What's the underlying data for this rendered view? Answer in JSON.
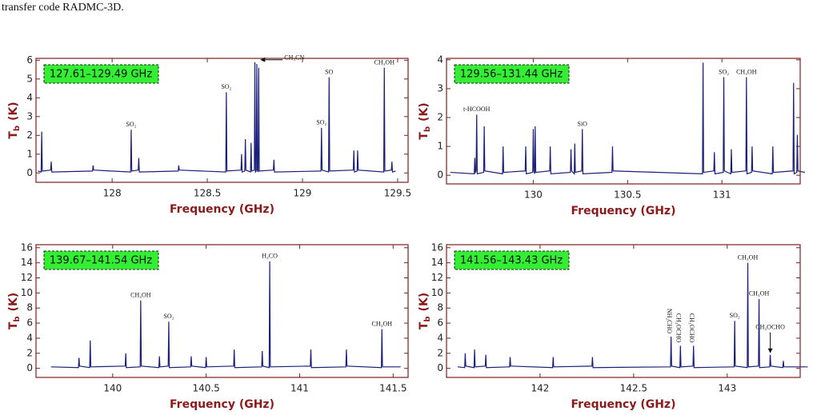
{
  "caption": "transfer code RADMC-3D.",
  "chart_data": [
    {
      "type": "line",
      "range_label": "127.61–129.49 GHz",
      "xlabel": "Frequency (GHz)",
      "ylabel": "T",
      "ylabel_subscript": "b",
      "ylabel_unit": "(K)",
      "color": "#1a1f7a",
      "box_color": "#33ee33",
      "xlim": [
        127.6,
        129.555
      ],
      "ylim": [
        -0.5,
        6.1
      ],
      "xticks": [
        128,
        128.5,
        129,
        129.5
      ],
      "yticks": [
        0,
        1,
        2,
        3,
        4,
        5,
        6
      ],
      "x": [
        127.61,
        127.627,
        127.63,
        127.633,
        127.677,
        127.68,
        127.683,
        127.897,
        127.9,
        127.903,
        128.097,
        128.1,
        128.103,
        128.137,
        128.14,
        128.143,
        128.347,
        128.35,
        128.353,
        128.597,
        128.6,
        128.603,
        128.677,
        128.68,
        128.683,
        128.697,
        128.7,
        128.703,
        128.727,
        128.73,
        128.733,
        128.747,
        128.75,
        128.753,
        128.757,
        128.76,
        128.763,
        128.767,
        128.77,
        128.773,
        128.847,
        128.85,
        128.853,
        129.097,
        129.1,
        129.103,
        129.137,
        129.14,
        129.143,
        129.267,
        129.27,
        129.273,
        129.287,
        129.29,
        129.293,
        129.427,
        129.43,
        129.433,
        129.467,
        129.47,
        129.473,
        129.49
      ],
      "values": [
        0.1,
        0.05,
        2.2,
        0.1,
        0.15,
        0.6,
        0.05,
        0.1,
        0.4,
        0.15,
        0.05,
        2.3,
        0.1,
        0.15,
        0.8,
        0.05,
        0.1,
        0.4,
        0.15,
        0.05,
        4.3,
        0.1,
        0.15,
        1.0,
        0.05,
        0.1,
        1.8,
        0.15,
        0.05,
        1.6,
        0.1,
        0.15,
        5.9,
        0.05,
        0.1,
        5.8,
        0.15,
        0.05,
        5.6,
        0.1,
        0.15,
        0.7,
        0.05,
        0.1,
        2.4,
        0.15,
        0.05,
        5.1,
        0.1,
        0.15,
        1.2,
        0.05,
        0.1,
        1.2,
        0.15,
        0.05,
        5.6,
        0.1,
        0.15,
        0.6,
        0.05,
        0.1
      ],
      "annotations": [
        {
          "text": "SO₂",
          "x": 128.1,
          "y": 2.3
        },
        {
          "text": "SO₂",
          "x": 128.6,
          "y": 4.3
        },
        {
          "text": "CH₃CN",
          "x": 128.77,
          "y": 5.6,
          "arrow": "left"
        },
        {
          "text": "SO₂",
          "x": 129.1,
          "y": 2.4
        },
        {
          "text": "SO",
          "x": 129.14,
          "y": 5.1
        },
        {
          "text": "CH₃OH",
          "x": 129.43,
          "y": 5.6
        }
      ]
    },
    {
      "type": "line",
      "range_label": "129.56–131.44 GHz",
      "xlabel": "Frequency (GHz)",
      "ylabel": "T",
      "ylabel_subscript": "b",
      "ylabel_unit": "(K)",
      "color": "#1a1f7a",
      "box_color": "#33ee33",
      "xlim": [
        129.54,
        131.415
      ],
      "ylim": [
        -0.3,
        4.05
      ],
      "xticks": [
        130,
        130.5,
        131
      ],
      "yticks": [
        0,
        1,
        2,
        3,
        4
      ],
      "x": [
        129.56,
        129.687,
        129.69,
        129.693,
        129.697,
        129.7,
        129.703,
        129.737,
        129.74,
        129.743,
        129.837,
        129.84,
        129.843,
        129.957,
        129.96,
        129.963,
        129.997,
        130.0,
        130.003,
        130.007,
        130.01,
        130.013,
        130.087,
        130.09,
        130.093,
        130.197,
        130.2,
        130.203,
        130.217,
        130.22,
        130.223,
        130.257,
        130.26,
        130.263,
        130.417,
        130.42,
        130.423,
        130.897,
        130.9,
        130.903,
        130.957,
        130.96,
        130.963,
        131.007,
        131.01,
        131.013,
        131.047,
        131.05,
        131.053,
        131.127,
        131.13,
        131.133,
        131.157,
        131.16,
        131.163,
        131.267,
        131.27,
        131.273,
        131.377,
        131.38,
        131.383,
        131.397,
        131.4,
        131.403,
        131.44
      ],
      "values": [
        0.1,
        0.05,
        0.6,
        0.1,
        0.15,
        2.1,
        0.05,
        0.1,
        1.7,
        0.15,
        0.05,
        1.0,
        0.1,
        0.15,
        1.0,
        0.05,
        0.1,
        1.6,
        0.15,
        0.05,
        1.7,
        0.1,
        0.15,
        1.0,
        0.05,
        0.1,
        0.9,
        0.15,
        0.05,
        1.1,
        0.1,
        0.15,
        1.6,
        0.05,
        0.1,
        1.0,
        0.15,
        0.05,
        3.9,
        0.1,
        0.15,
        0.8,
        0.05,
        0.1,
        3.4,
        0.15,
        0.05,
        0.9,
        0.1,
        0.15,
        3.4,
        0.05,
        0.1,
        1.0,
        0.15,
        0.05,
        1.0,
        0.1,
        0.15,
        3.2,
        0.05,
        0.1,
        1.4,
        0.15,
        0.1
      ],
      "annotations": [
        {
          "text": "t-HCOOH",
          "x": 129.7,
          "y": 2.1
        },
        {
          "text": "SiO",
          "x": 130.26,
          "y": 1.6
        },
        {
          "text": "SO₂",
          "x": 131.01,
          "y": 3.4
        },
        {
          "text": "CH₃OH",
          "x": 131.13,
          "y": 3.4
        }
      ]
    },
    {
      "type": "line",
      "range_label": "139.67–141.54 GHz",
      "xlabel": "Frequency (GHz)",
      "ylabel": "T",
      "ylabel_subscript": "b",
      "ylabel_unit": "(K)",
      "color": "#1a1f7a",
      "box_color": "#33ee33",
      "xlim": [
        139.59,
        141.58
      ],
      "ylim": [
        -1.2,
        16.4
      ],
      "xticks": [
        140,
        140.5,
        141,
        141.5
      ],
      "yticks": [
        0,
        2,
        4,
        6,
        8,
        10,
        12,
        14,
        16
      ],
      "x": [
        139.67,
        139.817,
        139.82,
        139.823,
        139.877,
        139.88,
        139.883,
        140.067,
        140.07,
        140.073,
        140.147,
        140.15,
        140.153,
        140.247,
        140.25,
        140.253,
        140.297,
        140.3,
        140.303,
        140.417,
        140.42,
        140.423,
        140.497,
        140.5,
        140.503,
        140.647,
        140.65,
        140.653,
        140.797,
        140.8,
        140.803,
        140.837,
        140.84,
        140.843,
        141.057,
        141.06,
        141.063,
        141.247,
        141.25,
        141.253,
        141.437,
        141.44,
        141.443,
        141.54
      ],
      "values": [
        0.2,
        0.1,
        1.4,
        0.3,
        0.1,
        3.7,
        0.2,
        0.3,
        2.0,
        0.1,
        0.2,
        9.0,
        0.3,
        0.1,
        1.6,
        0.2,
        0.3,
        6.2,
        0.1,
        0.2,
        1.6,
        0.3,
        0.1,
        1.5,
        0.2,
        0.3,
        2.5,
        0.1,
        0.2,
        2.3,
        0.3,
        0.1,
        14.2,
        0.2,
        0.3,
        2.5,
        0.1,
        0.2,
        2.5,
        0.3,
        0.1,
        5.2,
        0.2,
        0.2
      ],
      "annotations": [
        {
          "text": "CH₃OH",
          "x": 140.15,
          "y": 9.0
        },
        {
          "text": "SO₂",
          "x": 140.3,
          "y": 6.2
        },
        {
          "text": "H₂CO",
          "x": 140.84,
          "y": 14.2
        },
        {
          "text": "CH₃OH",
          "x": 141.44,
          "y": 5.2
        }
      ]
    },
    {
      "type": "line",
      "range_label": "141.56–143.43 GHz",
      "xlabel": "Frequency (GHz)",
      "ylabel": "T",
      "ylabel_subscript": "b",
      "ylabel_unit": "(K)",
      "color": "#1a1f7a",
      "box_color": "#33ee33",
      "xlim": [
        141.5,
        143.39
      ],
      "ylim": [
        -1.2,
        16.4
      ],
      "xticks": [
        142,
        142.5,
        143
      ],
      "yticks": [
        0,
        2,
        4,
        6,
        8,
        10,
        12,
        14,
        16
      ],
      "x": [
        141.56,
        141.597,
        141.6,
        141.603,
        141.647,
        141.65,
        141.653,
        141.707,
        141.71,
        141.713,
        141.837,
        141.84,
        141.843,
        142.067,
        142.07,
        142.073,
        142.277,
        142.28,
        142.283,
        142.697,
        142.7,
        142.703,
        142.747,
        142.75,
        142.753,
        142.817,
        142.82,
        142.823,
        143.037,
        143.04,
        143.043,
        143.107,
        143.11,
        143.113,
        143.167,
        143.17,
        143.173,
        143.227,
        143.23,
        143.233,
        143.297,
        143.3,
        143.303,
        143.43
      ],
      "values": [
        0.2,
        0.1,
        2.0,
        0.3,
        0.1,
        2.5,
        0.2,
        0.3,
        1.8,
        0.1,
        0.2,
        1.5,
        0.3,
        0.1,
        1.5,
        0.2,
        0.3,
        1.5,
        0.1,
        0.2,
        4.2,
        0.3,
        0.1,
        3.0,
        0.2,
        0.3,
        3.0,
        0.1,
        0.2,
        6.3,
        0.3,
        0.1,
        14.0,
        0.2,
        0.3,
        9.2,
        0.1,
        0.2,
        1.8,
        0.3,
        0.1,
        1.0,
        0.2,
        0.2
      ],
      "annotations": [
        {
          "text": "NH₂CHO",
          "x": 142.7,
          "y": 4.2,
          "rotated": true
        },
        {
          "text": "CH₃OCHO",
          "x": 142.75,
          "y": 3.0,
          "rotated": true
        },
        {
          "text": "CH₃OCHO",
          "x": 142.82,
          "y": 3.0,
          "rotated": true
        },
        {
          "text": "SO₂",
          "x": 143.04,
          "y": 6.3
        },
        {
          "text": "CH₃OH",
          "x": 143.11,
          "y": 14.0
        },
        {
          "text": "CH₃OH",
          "x": 143.17,
          "y": 9.2
        },
        {
          "text": "CH₃OCHO",
          "x": 143.23,
          "y": 1.8,
          "arrow": "down"
        }
      ]
    }
  ]
}
